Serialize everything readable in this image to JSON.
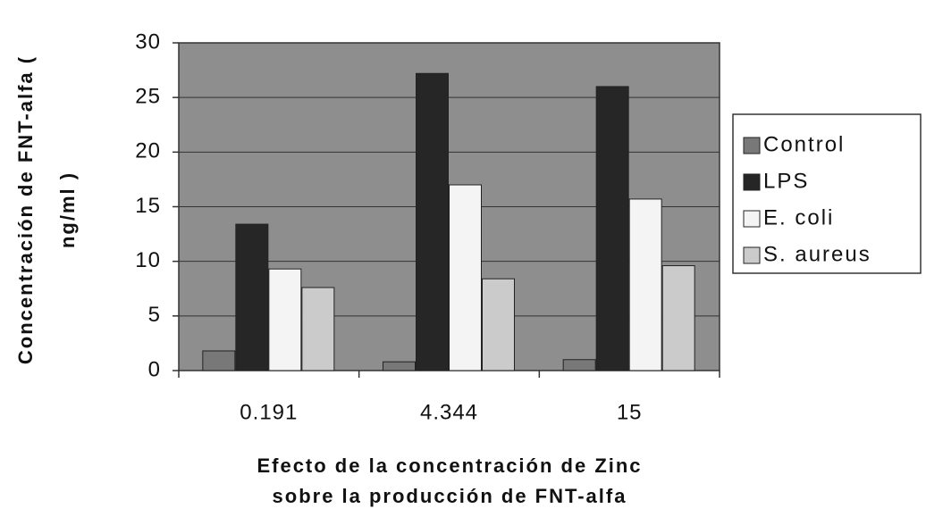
{
  "chart_data": {
    "type": "bar",
    "x_label": [
      "Efecto de la concentración de Zinc",
      "sobre la producción de FNT-alfa"
    ],
    "y_label": [
      "Concentración de FNT-alfa (",
      "ng/ml )"
    ],
    "categories": [
      "0.191",
      "4.344",
      "15"
    ],
    "series": [
      {
        "name": "Control",
        "color": "#787878",
        "values": [
          1.8,
          0.8,
          1.0
        ]
      },
      {
        "name": "LPS",
        "color": "#262626",
        "values": [
          13.4,
          27.2,
          26.0
        ]
      },
      {
        "name": "E. coli",
        "color": "#f4f4f4",
        "values": [
          9.3,
          17.0,
          15.7
        ]
      },
      {
        "name": "S. aureus",
        "color": "#cbcbcb",
        "values": [
          7.6,
          8.4,
          9.6
        ]
      }
    ],
    "ylim": [
      0,
      30
    ],
    "yticks": [
      0,
      5,
      10,
      15,
      20,
      25,
      30
    ],
    "grid": true,
    "background": "#8e8e8e",
    "legend": "right"
  }
}
